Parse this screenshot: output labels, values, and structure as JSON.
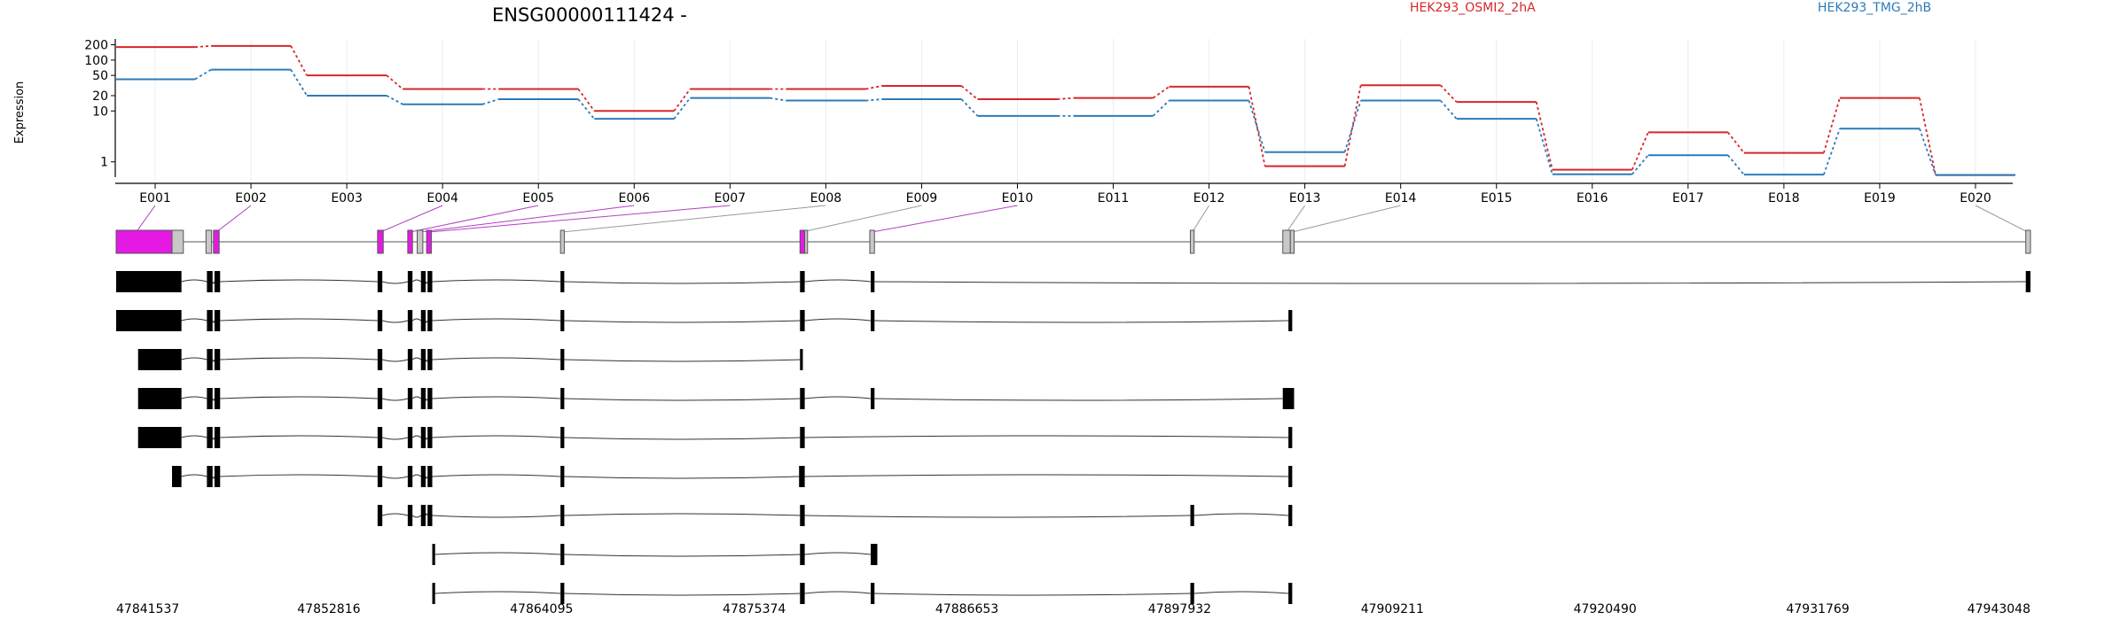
{
  "chart_data": {
    "type": "line",
    "title": "ENSG00000111424 -",
    "ylabel": "Expression",
    "yscale": "log",
    "ylim": [
      0.5,
      260
    ],
    "yticks": [
      1,
      10,
      20,
      50,
      100,
      200
    ],
    "legend_placement": "top-right",
    "categories": [
      "E001",
      "E002",
      "E003",
      "E004",
      "E005",
      "E006",
      "E007",
      "E008",
      "E009",
      "E010",
      "E011",
      "E012",
      "E013",
      "E014",
      "E015",
      "E016",
      "E017",
      "E018",
      "E019",
      "E020"
    ],
    "series": [
      {
        "name": "HEK293_OSMI2_2hA",
        "color": "#d62728",
        "values": [
          180,
          190,
          50,
          27,
          27,
          10,
          27,
          27,
          31,
          17,
          18,
          30,
          0.82,
          32,
          15,
          0.7,
          3.8,
          1.5,
          18,
          0.55
        ]
      },
      {
        "name": "HEK293_TMG_2hB",
        "color": "#2b7bba",
        "values": [
          42,
          65,
          20,
          13.5,
          17,
          7,
          18,
          16,
          17,
          8,
          8,
          16,
          1.55,
          16,
          7,
          0.57,
          1.35,
          0.56,
          4.5,
          0.55
        ]
      }
    ],
    "exon_highlight_color": "#e41ae4",
    "genomic_ticks": [
      "47841537",
      "47852816",
      "47864095",
      "47875374",
      "47886653",
      "47897932",
      "47909211",
      "47920490",
      "47931769",
      "47943048"
    ],
    "genomic_range": [
      47841537,
      47943048
    ],
    "exon_spans_gene": [
      [
        47841537,
        47844500,
        "hl"
      ],
      [
        47844500,
        47845100,
        "gray"
      ],
      [
        47846300,
        47846600,
        "gray"
      ],
      [
        47846700,
        47847000,
        "hl"
      ],
      [
        47855400,
        47855700,
        "hl"
      ],
      [
        47857000,
        47857250,
        "hl"
      ],
      [
        47857500,
        47857800,
        "gray"
      ],
      [
        47858000,
        47858250,
        "hl"
      ],
      [
        47865100,
        47865300,
        "gray"
      ],
      [
        47877800,
        47878050,
        "hl"
      ],
      [
        47878050,
        47878200,
        "gray"
      ],
      [
        47881500,
        47881750,
        "gray"
      ],
      [
        47898500,
        47898700,
        "gray"
      ],
      [
        47903400,
        47903800,
        "gray"
      ],
      [
        47903800,
        47904000,
        "gray"
      ],
      [
        47942800,
        47943048,
        "gray"
      ]
    ],
    "exon_genomic_centers": [
      47842600,
      47846850,
      47855550,
      47857120,
      47857650,
      47858120,
      47865200,
      47877900,
      47881620,
      47898600,
      47903600,
      47903900,
      47942900
    ],
    "exon_map_labels": [
      1,
      2,
      4,
      5,
      6,
      7,
      8,
      9,
      10,
      12,
      13,
      14,
      20
    ],
    "transcripts": [
      {
        "start": 47841537,
        "end": 47943048,
        "exons": [
          [
            47841537,
            47845000
          ],
          [
            47846350,
            47846650
          ],
          [
            47846750,
            47847050
          ],
          [
            47855400,
            47855650
          ],
          [
            47857000,
            47857250
          ],
          [
            47857700,
            47857950
          ],
          [
            47858050,
            47858300
          ],
          [
            47865100,
            47865300
          ],
          [
            47877800,
            47878050
          ],
          [
            47881550,
            47881750
          ],
          [
            47942800,
            47943048
          ]
        ]
      },
      {
        "start": 47841537,
        "end": 47903900,
        "exons": [
          [
            47841537,
            47845000
          ],
          [
            47846350,
            47846650
          ],
          [
            47846750,
            47847050
          ],
          [
            47855400,
            47855650
          ],
          [
            47857000,
            47857250
          ],
          [
            47857700,
            47857950
          ],
          [
            47858050,
            47858300
          ],
          [
            47865100,
            47865300
          ],
          [
            47877800,
            47878050
          ],
          [
            47881550,
            47881750
          ],
          [
            47903700,
            47903900
          ]
        ]
      },
      {
        "start": 47842700,
        "end": 47877950,
        "exons": [
          [
            47842700,
            47845000
          ],
          [
            47846350,
            47846650
          ],
          [
            47846750,
            47847050
          ],
          [
            47855400,
            47855650
          ],
          [
            47857000,
            47857250
          ],
          [
            47857700,
            47857950
          ],
          [
            47858050,
            47858300
          ],
          [
            47865100,
            47865300
          ],
          [
            47877800,
            47877950
          ]
        ]
      },
      {
        "start": 47842700,
        "end": 47904000,
        "exons": [
          [
            47842700,
            47845000
          ],
          [
            47846350,
            47846650
          ],
          [
            47846750,
            47847050
          ],
          [
            47855400,
            47855650
          ],
          [
            47857000,
            47857250
          ],
          [
            47857700,
            47857950
          ],
          [
            47858050,
            47858300
          ],
          [
            47865100,
            47865300
          ],
          [
            47877800,
            47878050
          ],
          [
            47881550,
            47881750
          ],
          [
            47903400,
            47904000
          ]
        ]
      },
      {
        "start": 47842700,
        "end": 47903900,
        "exons": [
          [
            47842700,
            47845000
          ],
          [
            47846350,
            47846650
          ],
          [
            47846750,
            47847050
          ],
          [
            47855400,
            47855650
          ],
          [
            47857000,
            47857250
          ],
          [
            47857700,
            47857950
          ],
          [
            47858050,
            47858300
          ],
          [
            47865100,
            47865300
          ],
          [
            47877800,
            47878050
          ],
          [
            47903700,
            47903900
          ]
        ]
      },
      {
        "start": 47844500,
        "end": 47903900,
        "exons": [
          [
            47844500,
            47845000
          ],
          [
            47846350,
            47846650
          ],
          [
            47846750,
            47847050
          ],
          [
            47855400,
            47855650
          ],
          [
            47857000,
            47857250
          ],
          [
            47857700,
            47857950
          ],
          [
            47858050,
            47858300
          ],
          [
            47865100,
            47865300
          ],
          [
            47877750,
            47878050
          ],
          [
            47903700,
            47903900
          ]
        ]
      },
      {
        "start": 47855400,
        "end": 47903900,
        "exons": [
          [
            47855400,
            47855650
          ],
          [
            47857000,
            47857250
          ],
          [
            47857700,
            47857950
          ],
          [
            47858050,
            47858300
          ],
          [
            47865100,
            47865300
          ],
          [
            47877800,
            47878050
          ],
          [
            47898500,
            47898700
          ],
          [
            47903700,
            47903900
          ]
        ]
      },
      {
        "start": 47858300,
        "end": 47881900,
        "exons": [
          [
            47858300,
            47858450
          ],
          [
            47865100,
            47865300
          ],
          [
            47877800,
            47878050
          ],
          [
            47881550,
            47881900
          ]
        ]
      },
      {
        "start": 47858300,
        "end": 47903900,
        "exons": [
          [
            47858300,
            47858450
          ],
          [
            47865100,
            47865300
          ],
          [
            47877800,
            47878050
          ],
          [
            47881550,
            47881750
          ],
          [
            47898500,
            47898700
          ],
          [
            47903700,
            47903900
          ]
        ]
      }
    ]
  }
}
